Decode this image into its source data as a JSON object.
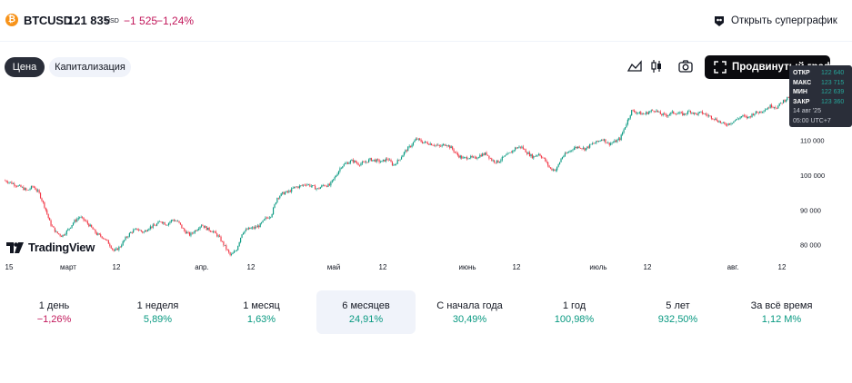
{
  "header": {
    "icon": "bitcoin-icon",
    "symbol": "BTCUSD",
    "price": "121 835",
    "currency": "USD",
    "change": "−1 525",
    "change_percent": "−1,24%",
    "open_supergraph_label": "Открыть суперграфик"
  },
  "tabs": [
    {
      "label": "Цена",
      "active": true
    },
    {
      "label": "Капитализация",
      "active": false
    }
  ],
  "toolbar": {
    "line_icon": "area-chart-icon",
    "candle_icon": "candlestick-icon",
    "camera_icon": "camera-icon",
    "advanced_label": "Продвинутый график"
  },
  "tooltip": {
    "open_label": "ОТКР",
    "open": "122 640",
    "high_label": "МАКС",
    "high": "123 715",
    "low_label": "МИН",
    "low": "122 639",
    "close_label": "ЗАКР",
    "close": "123 360",
    "date": "14 авг '25",
    "time": "05:00 UTC+7"
  },
  "logo_text": "TradingView",
  "colors": {
    "up": "#089981",
    "down": "#f23645",
    "neg_text": "#c2185b"
  },
  "chart_data": {
    "type": "candlestick",
    "y_ticks": [
      "110 000",
      "100 000",
      "90 000",
      "80 000"
    ],
    "x_ticks": [
      "15",
      "март",
      "12",
      "апр.",
      "12",
      "май",
      "12",
      "июнь",
      "12",
      "июль",
      "12",
      "авг.",
      "12"
    ],
    "ylim": [
      76500,
      123500
    ],
    "series": [
      {
        "name": "BTCUSD",
        "path_values": [
          98500,
          98000,
          97200,
          96500,
          95500,
          96800,
          95000,
          91000,
          86000,
          83500,
          82500,
          84200,
          86500,
          88000,
          86800,
          85000,
          83000,
          82200,
          80500,
          78000,
          79500,
          82000,
          83800,
          84500,
          83500,
          85000,
          85500,
          86800,
          85800,
          87200,
          86500,
          84000,
          82800,
          84200,
          85800,
          84500,
          83800,
          82200,
          79500,
          76800,
          78500,
          83500,
          84500,
          84800,
          85500,
          87500,
          88500,
          93500,
          94800,
          95200,
          96500,
          96800,
          97500,
          96800,
          96000,
          97200,
          97000,
          99500,
          102500,
          103500,
          104200,
          103200,
          103500,
          104500,
          104200,
          103800,
          104800,
          102800,
          104500,
          106800,
          108500,
          110500,
          109500,
          109200,
          108800,
          108200,
          109000,
          107800,
          105800,
          104800,
          105200,
          104800,
          105800,
          106200,
          104200,
          103800,
          105200,
          106200,
          107800,
          108200,
          106500,
          105200,
          106200,
          104500,
          101800,
          101500,
          105200,
          106500,
          107800,
          108200,
          107500,
          108800,
          109500,
          110500,
          109000,
          109500,
          110500,
          114500,
          118500,
          118000,
          117500,
          118200,
          118800,
          117500,
          117200,
          118000,
          117800,
          117500,
          118500,
          117500,
          118000,
          117200,
          116500,
          115500,
          114500,
          115000,
          116000,
          117000,
          116500,
          117800,
          118200,
          119000,
          120000,
          119500,
          121200,
          122500
        ]
      }
    ]
  },
  "periods": [
    {
      "label": "1 день",
      "value": "−1,26%",
      "sign": "neg",
      "selected": false
    },
    {
      "label": "1 неделя",
      "value": "5,89%",
      "sign": "pos",
      "selected": false
    },
    {
      "label": "1 месяц",
      "value": "1,63%",
      "sign": "pos",
      "selected": false
    },
    {
      "label": "6 месяцев",
      "value": "24,91%",
      "sign": "pos",
      "selected": true
    },
    {
      "label": "С начала года",
      "value": "30,49%",
      "sign": "pos",
      "selected": false
    },
    {
      "label": "1 год",
      "value": "100,98%",
      "sign": "pos",
      "selected": false
    },
    {
      "label": "5 лет",
      "value": "932,50%",
      "sign": "pos",
      "selected": false
    },
    {
      "label": "За всё время",
      "value": "1,12 M%",
      "sign": "pos",
      "selected": false
    }
  ]
}
